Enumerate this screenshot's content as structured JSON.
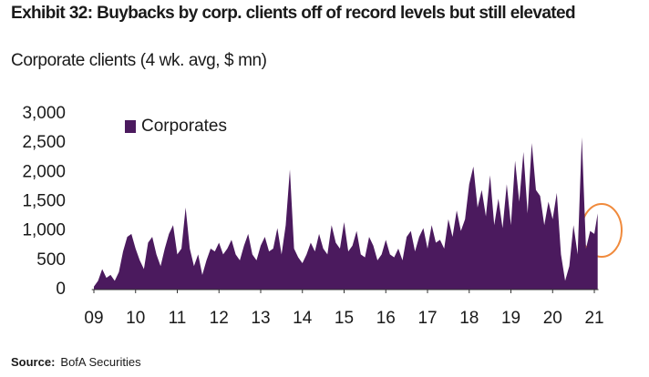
{
  "chart_data": {
    "type": "area",
    "title": "Exhibit 32: Buybacks by corp. clients off of record levels but still elevated",
    "subtitle": "Corporate clients (4 wk. avg, $ mn)",
    "source": {
      "label": "Source:",
      "text": "BofA Securities"
    },
    "color": "#4b1a5e",
    "legend": "upper left",
    "grid": false,
    "xlim": [
      2008.95,
      2021.1
    ],
    "xticks": [
      {
        "value": 2009,
        "label": "09"
      },
      {
        "value": 2010,
        "label": "10"
      },
      {
        "value": 2011,
        "label": "11"
      },
      {
        "value": 2012,
        "label": "12"
      },
      {
        "value": 2013,
        "label": "13"
      },
      {
        "value": 2014,
        "label": "14"
      },
      {
        "value": 2015,
        "label": "15"
      },
      {
        "value": 2016,
        "label": "16"
      },
      {
        "value": 2017,
        "label": "17"
      },
      {
        "value": 2018,
        "label": "18"
      },
      {
        "value": 2019,
        "label": "19"
      },
      {
        "value": 2020,
        "label": "20"
      },
      {
        "value": 2021,
        "label": "21"
      }
    ],
    "ylim": [
      0,
      3000
    ],
    "yticks": [
      0,
      500,
      {
        "value": 1000,
        "label": "1,000"
      },
      {
        "value": 1500,
        "label": "1,500"
      },
      {
        "value": 2000,
        "label": "2,000"
      },
      {
        "value": 2500,
        "label": "2,500"
      },
      {
        "value": 3000,
        "label": "3,000"
      }
    ],
    "x": [
      2009.0,
      2009.1,
      2009.2,
      2009.3,
      2009.4,
      2009.5,
      2009.6,
      2009.7,
      2009.8,
      2009.9,
      2010.0,
      2010.1,
      2010.2,
      2010.3,
      2010.4,
      2010.5,
      2010.6,
      2010.7,
      2010.8,
      2010.9,
      2011.0,
      2011.1,
      2011.2,
      2011.3,
      2011.4,
      2011.5,
      2011.6,
      2011.7,
      2011.8,
      2011.9,
      2012.0,
      2012.1,
      2012.2,
      2012.3,
      2012.4,
      2012.5,
      2012.6,
      2012.7,
      2012.8,
      2012.9,
      2013.0,
      2013.1,
      2013.2,
      2013.3,
      2013.4,
      2013.5,
      2013.6,
      2013.7,
      2013.8,
      2013.9,
      2014.0,
      2014.1,
      2014.2,
      2014.3,
      2014.4,
      2014.5,
      2014.6,
      2014.7,
      2014.8,
      2014.9,
      2015.0,
      2015.1,
      2015.2,
      2015.3,
      2015.4,
      2015.5,
      2015.6,
      2015.7,
      2015.8,
      2015.9,
      2016.0,
      2016.1,
      2016.2,
      2016.3,
      2016.4,
      2016.5,
      2016.6,
      2016.7,
      2016.8,
      2016.9,
      2017.0,
      2017.1,
      2017.2,
      2017.3,
      2017.4,
      2017.5,
      2017.6,
      2017.7,
      2017.8,
      2017.9,
      2018.0,
      2018.1,
      2018.2,
      2018.3,
      2018.4,
      2018.5,
      2018.6,
      2018.7,
      2018.8,
      2018.9,
      2019.0,
      2019.1,
      2019.2,
      2019.3,
      2019.4,
      2019.5,
      2019.6,
      2019.7,
      2019.8,
      2019.9,
      2020.0,
      2020.1,
      2020.2,
      2020.3,
      2020.4,
      2020.5,
      2020.6,
      2020.7,
      2020.8,
      2020.9,
      2021.0,
      2021.08
    ],
    "series": [
      {
        "name": "Corporates",
        "color": "#4b1a5e",
        "values": [
          50,
          150,
          350,
          200,
          250,
          150,
          300,
          650,
          900,
          950,
          700,
          500,
          350,
          800,
          900,
          600,
          400,
          700,
          950,
          1100,
          600,
          700,
          1400,
          700,
          400,
          600,
          250,
          500,
          700,
          650,
          800,
          600,
          700,
          850,
          600,
          500,
          750,
          950,
          600,
          500,
          750,
          900,
          650,
          700,
          1050,
          600,
          1100,
          2050,
          700,
          550,
          450,
          600,
          800,
          650,
          950,
          700,
          600,
          1100,
          800,
          700,
          1150,
          650,
          750,
          1000,
          600,
          550,
          900,
          750,
          500,
          600,
          850,
          600,
          550,
          700,
          500,
          900,
          1000,
          650,
          900,
          1050,
          700,
          1100,
          800,
          850,
          700,
          1200,
          900,
          1350,
          1000,
          1200,
          1800,
          2100,
          1400,
          1700,
          1250,
          1950,
          1100,
          1550,
          1050,
          1800,
          1100,
          2200,
          1500,
          2350,
          1300,
          2500,
          1700,
          1600,
          1100,
          1500,
          1200,
          1650,
          600,
          150,
          400,
          1100,
          600,
          2600,
          700,
          1000,
          950,
          1300
        ]
      }
    ]
  }
}
